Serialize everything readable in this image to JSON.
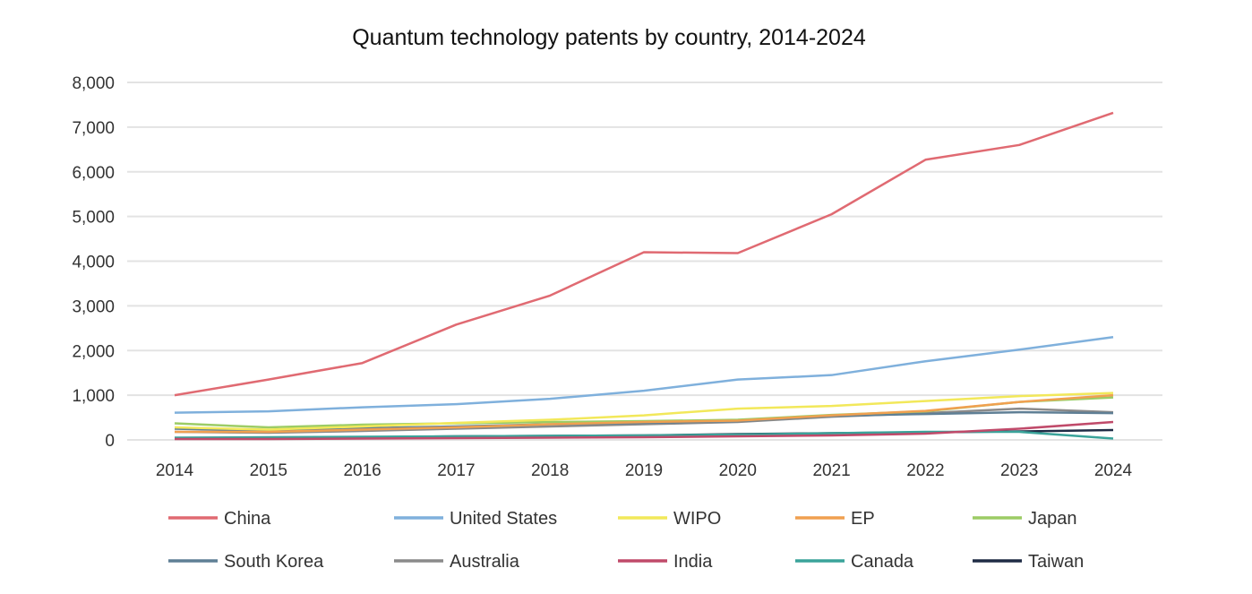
{
  "chart_data": {
    "type": "line",
    "title": "Quantum technology patents by country, 2014-2024",
    "xlabel": "",
    "ylabel": "",
    "x": [
      2014,
      2015,
      2016,
      2017,
      2018,
      2019,
      2020,
      2021,
      2022,
      2023,
      2024
    ],
    "ylim": [
      0,
      8000
    ],
    "yticks": [
      0,
      1000,
      2000,
      3000,
      4000,
      5000,
      6000,
      7000,
      8000
    ],
    "ytick_labels": [
      "0",
      "1,000",
      "2,000",
      "3,000",
      "4,000",
      "5,000",
      "6,000",
      "7,000",
      "8,000"
    ],
    "grid": true,
    "legend": "bottom",
    "series": [
      {
        "name": "China",
        "color": "#e06a72",
        "values": [
          1000,
          1350,
          1720,
          2580,
          3230,
          4200,
          4180,
          5050,
          6270,
          6600,
          7320
        ]
      },
      {
        "name": "United States",
        "color": "#7fb0dc",
        "values": [
          610,
          640,
          730,
          800,
          920,
          1100,
          1350,
          1450,
          1760,
          2020,
          2300
        ]
      },
      {
        "name": "WIPO",
        "color": "#f2e85a",
        "values": [
          280,
          230,
          300,
          380,
          450,
          550,
          700,
          760,
          870,
          980,
          1050
        ]
      },
      {
        "name": "EP",
        "color": "#f0a050",
        "values": [
          180,
          180,
          230,
          280,
          350,
          400,
          430,
          550,
          650,
          850,
          1000
        ]
      },
      {
        "name": "Japan",
        "color": "#9ccc65",
        "values": [
          370,
          280,
          340,
          370,
          400,
          420,
          450,
          560,
          640,
          850,
          950
        ]
      },
      {
        "name": "South Korea",
        "color": "#5f7f95",
        "values": [
          250,
          200,
          260,
          300,
          350,
          380,
          420,
          540,
          580,
          620,
          600
        ]
      },
      {
        "name": "Australia",
        "color": "#8a8a8a",
        "values": [
          180,
          160,
          200,
          250,
          300,
          350,
          400,
          520,
          600,
          700,
          620
        ]
      },
      {
        "name": "India",
        "color": "#c04a6a",
        "values": [
          20,
          20,
          30,
          40,
          50,
          60,
          80,
          100,
          140,
          250,
          400
        ]
      },
      {
        "name": "Canada",
        "color": "#3aa39a",
        "values": [
          50,
          60,
          70,
          80,
          90,
          100,
          120,
          150,
          180,
          180,
          30
        ]
      },
      {
        "name": "Taiwan",
        "color": "#1f2b45",
        "values": [
          40,
          50,
          60,
          80,
          90,
          100,
          130,
          150,
          170,
          190,
          220
        ]
      }
    ]
  }
}
